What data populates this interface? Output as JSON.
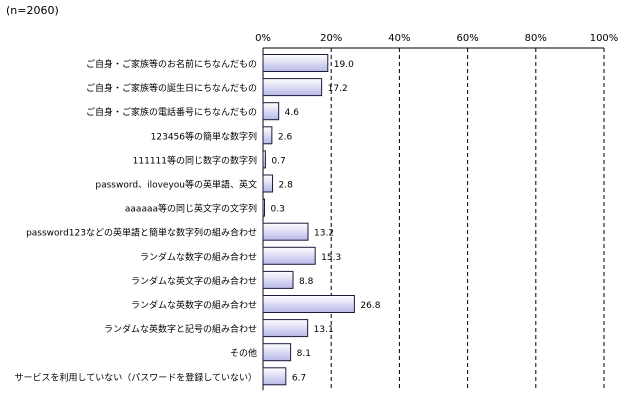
{
  "sample_note": "(n=2060)",
  "chart_data": {
    "type": "bar",
    "orientation": "horizontal",
    "xlim": [
      0,
      100
    ],
    "x_tick_labels": [
      "0%",
      "20%",
      "40%",
      "60%",
      "80%",
      "100%"
    ],
    "x_ticks": [
      0,
      20,
      40,
      60,
      80,
      100
    ],
    "grid": true,
    "categories": [
      "ご自身・ご家族等のお名前にちなんだもの",
      "ご自身・ご家族等の誕生日にちなんだもの",
      "ご自身・ご家族の電話番号にちなんだもの",
      "123456等の簡単な数字列",
      "111111等の同じ数字の数字列",
      "password、iloveyou等の英単語、英文",
      "aaaaaa等の同じ英文字の文字列",
      "password123などの英単語と簡単な数字列の組み合わせ",
      "ランダムな数字の組み合わせ",
      "ランダムな英文字の組み合わせ",
      "ランダムな英数字の組み合わせ",
      "ランダムな英数字と記号の組み合わせ",
      "その他",
      "サービスを利用していない（パスワードを登録していない）"
    ],
    "values": [
      19.0,
      17.2,
      4.6,
      2.6,
      0.7,
      2.8,
      0.3,
      13.2,
      15.3,
      8.8,
      26.8,
      13.1,
      8.1,
      6.7
    ],
    "value_labels": [
      "19.0",
      "17.2",
      "4.6",
      "2.6",
      "0.7",
      "2.8",
      "0.3",
      "13.2",
      "15.3",
      "8.8",
      "26.8",
      "13.1",
      "8.1",
      "6.7"
    ],
    "colors": {
      "bar_fill_start": "#ffffff",
      "bar_fill_end": "#b8b8e8",
      "bar_stroke": "#1a1a3a"
    }
  }
}
